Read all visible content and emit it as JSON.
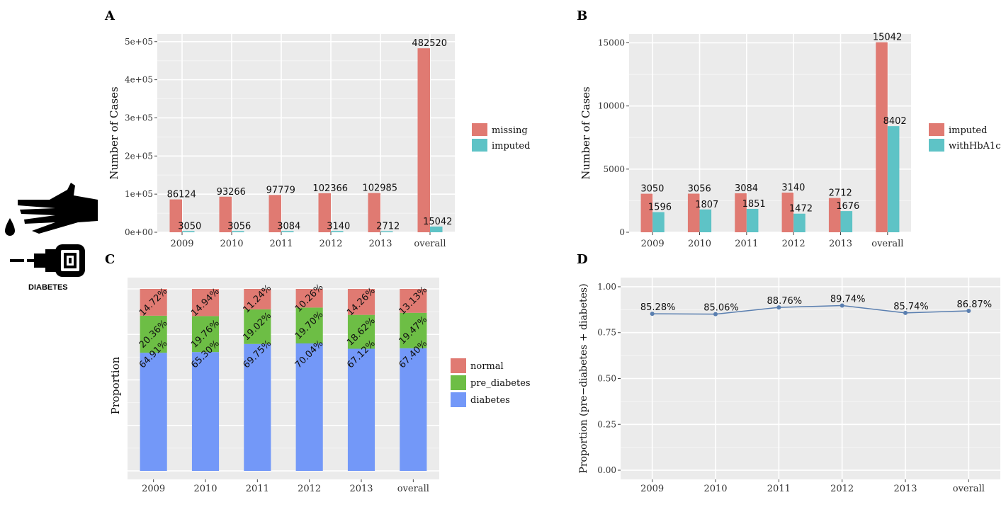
{
  "logo": {
    "caption": "DIABETES"
  },
  "chart_data": [
    {
      "panel": "A",
      "type": "bar",
      "categories": [
        "2009",
        "2010",
        "2011",
        "2012",
        "2013",
        "overall"
      ],
      "series": [
        {
          "name": "missing",
          "color": "#E07A72",
          "values": [
            86124,
            93266,
            97779,
            102366,
            102985,
            482520
          ]
        },
        {
          "name": "imputed",
          "color": "#5EC3C6",
          "values": [
            3050,
            3056,
            3084,
            3140,
            2712,
            15042
          ]
        }
      ],
      "ylabel": "Number of Cases",
      "ylim": [
        0,
        520000
      ],
      "yticks": [
        0,
        100000,
        200000,
        300000,
        400000,
        500000
      ],
      "yticklabels": [
        "0e+00",
        "1e+05",
        "2e+05",
        "3e+05",
        "4e+05",
        "5e+05"
      ],
      "grid": true,
      "legend": "right"
    },
    {
      "panel": "B",
      "type": "bar",
      "categories": [
        "2009",
        "2010",
        "2011",
        "2012",
        "2013",
        "overall"
      ],
      "series": [
        {
          "name": "imputed",
          "color": "#E07A72",
          "values": [
            3050,
            3056,
            3084,
            3140,
            2712,
            15042
          ]
        },
        {
          "name": "withHbA1c",
          "color": "#5EC3C6",
          "values": [
            1596,
            1807,
            1851,
            1472,
            1676,
            8402
          ]
        }
      ],
      "ylabel": "Number of Cases",
      "ylim": [
        0,
        15700
      ],
      "yticks": [
        0,
        5000,
        10000,
        15000
      ],
      "yticklabels": [
        "0",
        "5000",
        "10000",
        "15000"
      ],
      "grid": true,
      "legend": "right"
    },
    {
      "panel": "C",
      "type": "bar",
      "stacked": true,
      "categories": [
        "2009",
        "2010",
        "2011",
        "2012",
        "2013",
        "overall"
      ],
      "series": [
        {
          "name": "normal",
          "color": "#E07A72",
          "values": [
            14.72,
            14.94,
            11.24,
            10.26,
            14.26,
            13.13
          ],
          "labels": [
            "14.72%",
            "14.94%",
            "11.24%",
            "10.26%",
            "14.26%",
            "13.13%"
          ]
        },
        {
          "name": "pre_diabetes",
          "color": "#6DBE45",
          "values": [
            20.36,
            19.76,
            19.02,
            19.7,
            18.62,
            19.47
          ],
          "labels": [
            "20.36%",
            "19.76%",
            "19.02%",
            "19.70%",
            "18.62%",
            "19.47%"
          ]
        },
        {
          "name": "diabetes",
          "color": "#7398F8",
          "values": [
            64.91,
            65.3,
            69.75,
            70.04,
            67.12,
            67.4
          ],
          "labels": [
            "64.91%",
            "65.30%",
            "69.75%",
            "70.04%",
            "67.12%",
            "67.40%"
          ]
        }
      ],
      "ylabel": "Proportion",
      "ylim": [
        0,
        100
      ],
      "grid": true,
      "legend": "right"
    },
    {
      "panel": "D",
      "type": "line",
      "categories": [
        "2009",
        "2010",
        "2011",
        "2012",
        "2013",
        "overall"
      ],
      "values": [
        0.8528,
        0.8506,
        0.8876,
        0.8974,
        0.8574,
        0.8687
      ],
      "labels": [
        "85.28%",
        "85.06%",
        "88.76%",
        "89.74%",
        "85.74%",
        "86.87%"
      ],
      "color": "#5A7FB0",
      "ylabel": "Proportion (pre−diabetes + diabetes)",
      "ylim": [
        -0.05,
        1.05
      ],
      "yticks": [
        0,
        0.25,
        0.5,
        0.75,
        1.0
      ],
      "yticklabels": [
        "0.00",
        "0.25",
        "0.50",
        "0.75",
        "1.00"
      ],
      "grid": true
    }
  ]
}
